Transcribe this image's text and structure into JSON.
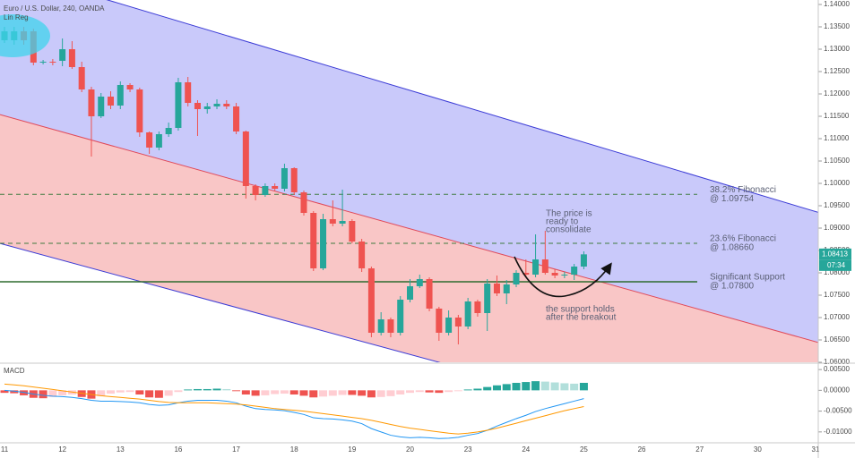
{
  "chart_data": [
    {
      "type": "candlestick",
      "title": "Euro / U.S. Dollar, 240, OANDA",
      "indicator": "Lin Reg",
      "ylim": [
        1.06,
        1.141
      ],
      "yticks": [
        {
          "value": 1.06,
          "label": "1.06000"
        },
        {
          "value": 1.065,
          "label": "1.06500"
        },
        {
          "value": 1.07,
          "label": "1.07000"
        },
        {
          "value": 1.075,
          "label": "1.07500"
        },
        {
          "value": 1.08,
          "label": "1.08000"
        },
        {
          "value": 1.085,
          "label": "1.08500"
        },
        {
          "value": 1.09,
          "label": "1.09000"
        },
        {
          "value": 1.095,
          "label": "1.09500"
        },
        {
          "value": 1.1,
          "label": "1.10000"
        },
        {
          "value": 1.105,
          "label": "1.10500"
        },
        {
          "value": 1.11,
          "label": "1.11000"
        },
        {
          "value": 1.115,
          "label": "1.11500"
        },
        {
          "value": 1.12,
          "label": "1.12000"
        },
        {
          "value": 1.125,
          "label": "1.12500"
        },
        {
          "value": 1.13,
          "label": "1.13000"
        },
        {
          "value": 1.135,
          "label": "1.13500"
        },
        {
          "value": 1.14,
          "label": "1.14000"
        }
      ],
      "grid": false,
      "up_color": "#26a69a",
      "down_color": "#ef5350",
      "open": [
        1.132,
        1.132,
        1.134,
        1.134,
        1.127,
        1.1272,
        1.1274,
        1.13,
        1.126,
        1.121,
        1.115,
        1.1194,
        1.1174,
        1.122,
        1.121,
        1.1114,
        1.108,
        1.111,
        1.1124,
        1.1226,
        1.118,
        1.1166,
        1.1172,
        1.1178,
        1.1172,
        1.1116,
        1.0994,
        1.0974,
        1.0994,
        1.0988,
        1.1034,
        1.098,
        1.0934,
        1.081,
        1.092,
        1.091,
        1.0916,
        1.087,
        1.081,
        1.0666,
        1.0696,
        1.0666,
        1.074,
        1.077,
        1.0786,
        1.072,
        1.0666,
        1.07,
        1.068,
        1.0736,
        1.071,
        1.0776,
        1.0754,
        1.0774,
        1.08,
        1.0796,
        1.083,
        1.08,
        1.0794,
        1.0796,
        1.0814,
        null,
        null,
        null,
        null,
        null,
        null,
        null,
        null,
        null,
        null,
        null,
        null,
        null,
        null,
        null,
        null,
        null,
        null,
        null,
        null,
        null,
        null,
        null,
        null
      ],
      "high": [
        1.135,
        1.135,
        1.135,
        1.1346,
        1.1276,
        1.1278,
        1.1324,
        1.1318,
        1.1272,
        1.1216,
        1.1202,
        1.1206,
        1.1228,
        1.1224,
        1.1214,
        1.1116,
        1.1116,
        1.1136,
        1.1236,
        1.1238,
        1.1186,
        1.118,
        1.1188,
        1.1186,
        1.118,
        1.1118,
        1.0998,
        1.1,
        1.1,
        1.1044,
        1.1036,
        1.0984,
        1.0938,
        1.0932,
        1.0962,
        1.0986,
        1.092,
        1.0876,
        1.0814,
        1.0712,
        1.07,
        1.0748,
        1.0786,
        1.0796,
        1.079,
        1.0724,
        1.0716,
        1.0706,
        1.0744,
        1.074,
        1.0786,
        1.0794,
        1.0784,
        1.0806,
        1.083,
        1.0886,
        1.0894,
        1.0808,
        1.0802,
        1.082,
        1.0848,
        null,
        null,
        null,
        null,
        null,
        null,
        null,
        null,
        null,
        null,
        null,
        null,
        null,
        null,
        null,
        null,
        null,
        null,
        null,
        null,
        null,
        null,
        null,
        null
      ],
      "low": [
        1.1314,
        1.131,
        1.131,
        1.1264,
        1.1266,
        1.1264,
        1.1262,
        1.1256,
        1.1204,
        1.106,
        1.1146,
        1.1166,
        1.1166,
        1.1204,
        1.1104,
        1.1066,
        1.1074,
        1.1104,
        1.1118,
        1.1172,
        1.1106,
        1.1156,
        1.1166,
        1.1166,
        1.111,
        1.0966,
        1.0962,
        1.097,
        1.0982,
        1.0982,
        1.0974,
        1.0928,
        1.0804,
        1.0806,
        1.0904,
        1.0904,
        1.0866,
        1.0802,
        1.0656,
        1.066,
        1.0656,
        1.066,
        1.0734,
        1.0766,
        1.0714,
        1.0648,
        1.066,
        1.064,
        1.0674,
        1.0702,
        1.067,
        1.0748,
        1.073,
        1.0768,
        1.0792,
        1.079,
        1.0796,
        1.0788,
        1.0788,
        1.0784,
        1.0808,
        null,
        null,
        null,
        null,
        null,
        null,
        null,
        null,
        null,
        null,
        null,
        null,
        null,
        null,
        null,
        null,
        null,
        null,
        null,
        null,
        null,
        null,
        null,
        null
      ],
      "close": [
        1.134,
        1.134,
        1.132,
        1.127,
        1.1272,
        1.127,
        1.13,
        1.126,
        1.121,
        1.115,
        1.1194,
        1.1174,
        1.122,
        1.121,
        1.1114,
        1.108,
        1.111,
        1.1124,
        1.1226,
        1.118,
        1.1166,
        1.1172,
        1.1178,
        1.1172,
        1.1116,
        1.0994,
        1.0974,
        1.0994,
        1.0988,
        1.1034,
        1.098,
        1.0934,
        1.081,
        1.092,
        1.091,
        1.0916,
        1.087,
        1.081,
        1.0666,
        1.0696,
        1.0666,
        1.074,
        1.077,
        1.0786,
        1.072,
        1.0666,
        1.07,
        1.068,
        1.0736,
        1.071,
        1.0776,
        1.0754,
        1.0774,
        1.08,
        1.0796,
        1.083,
        1.08,
        1.0794,
        1.0796,
        1.0814,
        1.08413,
        null,
        null,
        null,
        null,
        null,
        null,
        null,
        null,
        null,
        null,
        null,
        null,
        null,
        null,
        null,
        null,
        null,
        null,
        null,
        null,
        null,
        null,
        null,
        null
      ],
      "countdown": "07:34",
      "channel": {
        "upper": [
          1.1479,
          1.0937
        ],
        "middle": [
          1.1151,
          1.0646
        ],
        "lower": [
          1.0863,
          1.0372
        ],
        "line_color": "#3c3cd6",
        "middle_color": "#e04a5a",
        "upper_fill": "#c9c9fa",
        "lower_fill": "#f9c6c6"
      },
      "levels": [
        {
          "name": "38.2% Fibonacci",
          "label": "@ 1.09754",
          "value": 1.09754,
          "color": "#3f7a3f",
          "dashed": true
        },
        {
          "name": "23.6% Fibonacci",
          "label": "@ 1.08660",
          "value": 1.0866,
          "color": "#3f7a3f",
          "dashed": true
        },
        {
          "name": "Significant Support",
          "label": "@ 1.07800",
          "value": 1.078,
          "color": "#2e6b2e",
          "dashed": false
        }
      ],
      "annotations": [
        {
          "lines": [
            "The price is",
            "ready to",
            "consolidate"
          ]
        },
        {
          "lines": [
            "the support holds",
            "after the breakout"
          ]
        }
      ]
    },
    {
      "type": "macd",
      "title": "MACD",
      "ylim": [
        -0.0124,
        0.0061
      ],
      "yticks": [
        {
          "value": 0.005,
          "label": "0.00500"
        },
        {
          "value": 0,
          "label": "0.00000"
        },
        {
          "value": -0.005,
          "label": "-0.00500"
        },
        {
          "value": -0.01,
          "label": "-0.01000"
        }
      ],
      "categories": [
        "11",
        null,
        null,
        null,
        null,
        null,
        "12",
        null,
        null,
        null,
        null,
        null,
        "13",
        null,
        null,
        null,
        null,
        null,
        "16",
        null,
        null,
        null,
        null,
        null,
        "17",
        null,
        null,
        null,
        null,
        null,
        "18",
        null,
        null,
        null,
        null,
        null,
        "19",
        null,
        null,
        null,
        null,
        null,
        "20",
        null,
        null,
        null,
        null,
        null,
        "23",
        null,
        null,
        null,
        null,
        null,
        "24",
        null,
        null,
        null,
        null,
        null,
        "25",
        null,
        null,
        null,
        null,
        null,
        "26",
        null,
        null,
        null,
        null,
        null,
        "27",
        null,
        null,
        null,
        null,
        null,
        "30",
        null,
        null,
        null,
        null,
        null,
        "31"
      ],
      "histogram_colors": [
        "#26a69a",
        "#b2dfdb",
        "#ef5350",
        "#ffcdd2"
      ],
      "histogram": [
        -0.0006,
        -0.0007,
        -0.0012,
        -0.0018,
        -0.0019,
        -0.0016,
        -0.0012,
        -0.001,
        -0.0016,
        -0.002,
        -0.0014,
        -0.0008,
        -0.0005,
        -0.0004,
        -0.001,
        -0.0017,
        -0.0018,
        -0.0013,
        -0.0004,
        0.0002,
        0.0003,
        0.0003,
        0.0004,
        0.0003,
        -0.0002,
        -0.001,
        -0.0013,
        -0.0012,
        -0.0009,
        -0.0008,
        -0.001,
        -0.0013,
        -0.0017,
        -0.0015,
        -0.0013,
        -0.0011,
        -0.0011,
        -0.0013,
        -0.0017,
        -0.0016,
        -0.0014,
        -0.001,
        -0.0006,
        -0.0004,
        -0.0005,
        -0.0006,
        -0.0004,
        -0.0002,
        0.0002,
        0.0004,
        0.0008,
        0.0012,
        0.0015,
        0.0018,
        0.002,
        0.0022,
        0.0021,
        0.0019,
        0.0017,
        0.0016,
        0.0018,
        null,
        null,
        null,
        null,
        null,
        null,
        null,
        null,
        null,
        null,
        null,
        null,
        null,
        null,
        null,
        null,
        null,
        null,
        null,
        null,
        null,
        null,
        null,
        null
      ],
      "series": [
        {
          "color": "#2196f3",
          "values": [
            0,
            -0.0002,
            -0.0005,
            -0.0009,
            -0.0012,
            -0.0014,
            -0.0015,
            -0.0017,
            -0.002,
            -0.0024,
            -0.0026,
            -0.0026,
            -0.0027,
            -0.0028,
            -0.003,
            -0.0034,
            -0.0036,
            -0.0035,
            -0.003,
            -0.0026,
            -0.0024,
            -0.0024,
            -0.0024,
            -0.0026,
            -0.003,
            -0.0038,
            -0.0044,
            -0.0046,
            -0.0047,
            -0.0049,
            -0.0053,
            -0.0058,
            -0.0066,
            -0.0068,
            -0.0069,
            -0.0071,
            -0.0074,
            -0.008,
            -0.0092,
            -0.01,
            -0.0108,
            -0.0112,
            -0.0114,
            -0.0113,
            -0.0114,
            -0.0116,
            -0.0115,
            -0.0113,
            -0.0108,
            -0.0104,
            -0.0096,
            -0.0086,
            -0.0077,
            -0.0068,
            -0.006,
            -0.0051,
            -0.0044,
            -0.0038,
            -0.0032,
            -0.0026,
            -0.002,
            null,
            null,
            null,
            null,
            null,
            null,
            null,
            null,
            null,
            null,
            null,
            null,
            null,
            null,
            null,
            null,
            null,
            null,
            null,
            null,
            null,
            null,
            null,
            null
          ]
        },
        {
          "color": "#ff9800",
          "values": [
            0.0015,
            0.0013,
            0.0011,
            0.0008,
            0.0005,
            0.0002,
            -0.0001,
            -0.0004,
            -0.0007,
            -0.001,
            -0.0013,
            -0.0015,
            -0.0017,
            -0.0019,
            -0.0021,
            -0.0024,
            -0.0027,
            -0.0029,
            -0.003,
            -0.003,
            -0.003,
            -0.003,
            -0.0031,
            -0.0032,
            -0.0033,
            -0.0035,
            -0.0038,
            -0.0041,
            -0.0044,
            -0.0046,
            -0.0048,
            -0.005,
            -0.0053,
            -0.0056,
            -0.0059,
            -0.0062,
            -0.0065,
            -0.0068,
            -0.0072,
            -0.0077,
            -0.0082,
            -0.0087,
            -0.0091,
            -0.0094,
            -0.0097,
            -0.01,
            -0.0103,
            -0.0105,
            -0.0103,
            -0.01,
            -0.0096,
            -0.0091,
            -0.0085,
            -0.0079,
            -0.0073,
            -0.0067,
            -0.0061,
            -0.0055,
            -0.0049,
            -0.0044,
            -0.0039,
            null,
            null,
            null,
            null,
            null,
            null,
            null,
            null,
            null,
            null,
            null,
            null,
            null,
            null,
            null,
            null,
            null,
            null,
            null,
            null,
            null,
            null,
            null,
            null
          ]
        }
      ]
    }
  ]
}
